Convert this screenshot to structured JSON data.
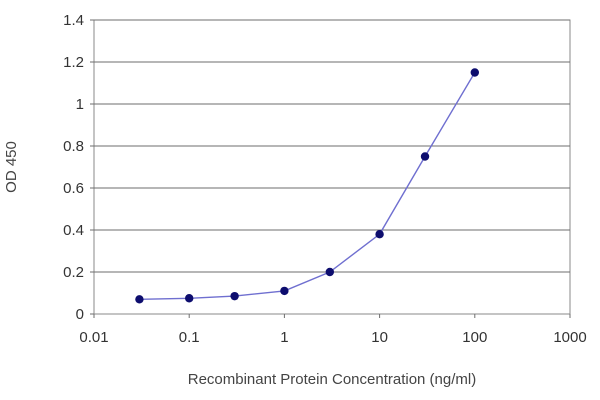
{
  "chart_data": {
    "type": "line",
    "title": "",
    "xlabel": "Recombinant Protein Concentration (ng/ml)",
    "ylabel": "OD 450",
    "x_scale": "log",
    "xlim": [
      0.01,
      1000
    ],
    "ylim": [
      0,
      1.4
    ],
    "x_ticks": [
      0.01,
      0.1,
      1,
      10,
      100,
      1000
    ],
    "x_tick_labels": [
      "0.01",
      "0.1",
      "1",
      "10",
      "100",
      "1000"
    ],
    "y_ticks": [
      0,
      0.2,
      0.4,
      0.6,
      0.8,
      1,
      1.2,
      1.4
    ],
    "y_tick_labels": [
      "0",
      "0.2",
      "0.4",
      "0.6",
      "0.8",
      "1",
      "1.2",
      "1.4"
    ],
    "grid": "horizontal",
    "legend": "none",
    "series": [
      {
        "color": "#6f6fd0",
        "marker_color": "#0d0d6e",
        "x": [
          0.03,
          0.1,
          0.3,
          1,
          3,
          10,
          30,
          100
        ],
        "y": [
          0.07,
          0.075,
          0.085,
          0.11,
          0.2,
          0.38,
          0.75,
          1.15
        ]
      }
    ]
  }
}
